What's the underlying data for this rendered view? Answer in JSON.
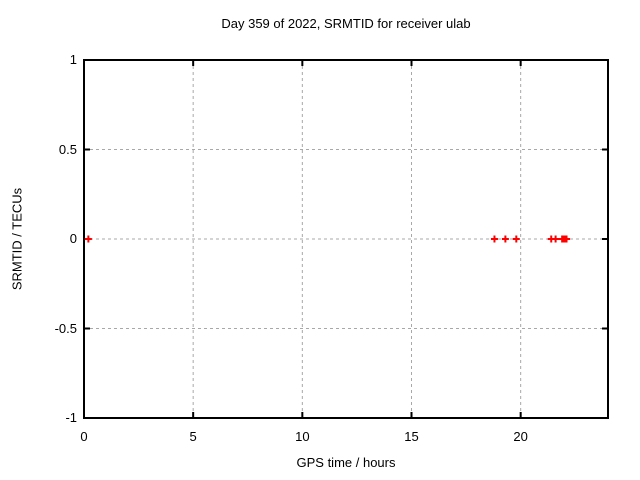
{
  "chart_data": {
    "type": "scatter",
    "title": "Day 359 of 2022, SRMTID for receiver ulab",
    "xlabel": "GPS time / hours",
    "ylabel": "SRMTID / TECUs",
    "xlim": [
      0,
      24
    ],
    "ylim": [
      -1,
      1
    ],
    "xticks": [
      {
        "value": 0,
        "label": "0"
      },
      {
        "value": 5,
        "label": "5"
      },
      {
        "value": 10,
        "label": "10"
      },
      {
        "value": 15,
        "label": "15"
      },
      {
        "value": 20,
        "label": "20"
      }
    ],
    "yticks": [
      {
        "value": -1,
        "label": "-1"
      },
      {
        "value": -0.5,
        "label": "-0.5"
      },
      {
        "value": 0,
        "label": "0"
      },
      {
        "value": 0.5,
        "label": "0.5"
      },
      {
        "value": 1,
        "label": "1"
      }
    ],
    "grid": true,
    "legend_position": "none",
    "marker": "plus",
    "series": [
      {
        "name": "SRMTID",
        "color": "#ff0000",
        "points": [
          {
            "x": 0.2,
            "y": 0
          },
          {
            "x": 18.8,
            "y": 0
          },
          {
            "x": 19.3,
            "y": 0
          },
          {
            "x": 19.8,
            "y": 0
          },
          {
            "x": 21.4,
            "y": 0
          },
          {
            "x": 21.6,
            "y": 0
          },
          {
            "x": 21.9,
            "y": 0
          },
          {
            "x": 21.95,
            "y": 0
          },
          {
            "x": 22.0,
            "y": 0
          },
          {
            "x": 22.05,
            "y": 0
          },
          {
            "x": 22.1,
            "y": 0
          }
        ]
      }
    ]
  },
  "colors": {
    "background": "#ffffff",
    "axis": "#000000",
    "grid": "#a8a8a8",
    "text": "#000000",
    "marker": "#ff0000"
  }
}
